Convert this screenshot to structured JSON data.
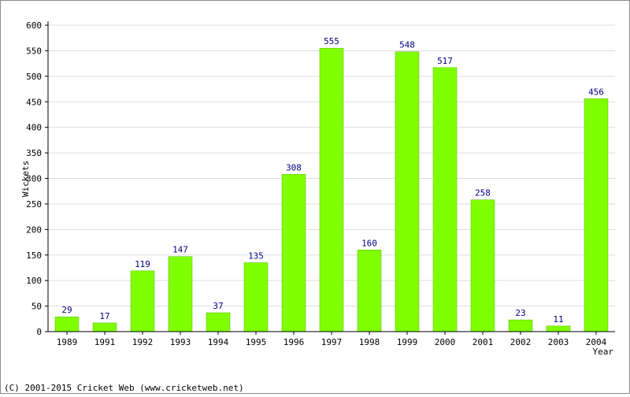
{
  "chart_data": {
    "type": "bar",
    "categories": [
      "1989",
      "1991",
      "1992",
      "1993",
      "1994",
      "1995",
      "1996",
      "1997",
      "1998",
      "1999",
      "2000",
      "2001",
      "2002",
      "2003",
      "2004"
    ],
    "values": [
      29,
      17,
      119,
      147,
      37,
      135,
      308,
      555,
      160,
      548,
      517,
      258,
      23,
      11,
      456
    ],
    "data_labels": [
      "29",
      "17",
      "119",
      "147",
      "37",
      "135",
      "308",
      "555",
      "160",
      "548",
      "517",
      "258",
      "23",
      "11",
      "456"
    ],
    "y_ticks": [
      0,
      50,
      100,
      150,
      200,
      250,
      300,
      350,
      400,
      450,
      500,
      550,
      600
    ],
    "ylim": [
      0,
      600
    ],
    "xlabel": "Year",
    "ylabel": "Wickets",
    "grid": true,
    "colors": {
      "bar": "#80ff00",
      "bar_edge": "#5ab400",
      "value_label": "#000080",
      "grid": "#dddddd"
    }
  },
  "footer": {
    "copyright": "(C) 2001-2015 Cricket Web (www.cricketweb.net)"
  }
}
